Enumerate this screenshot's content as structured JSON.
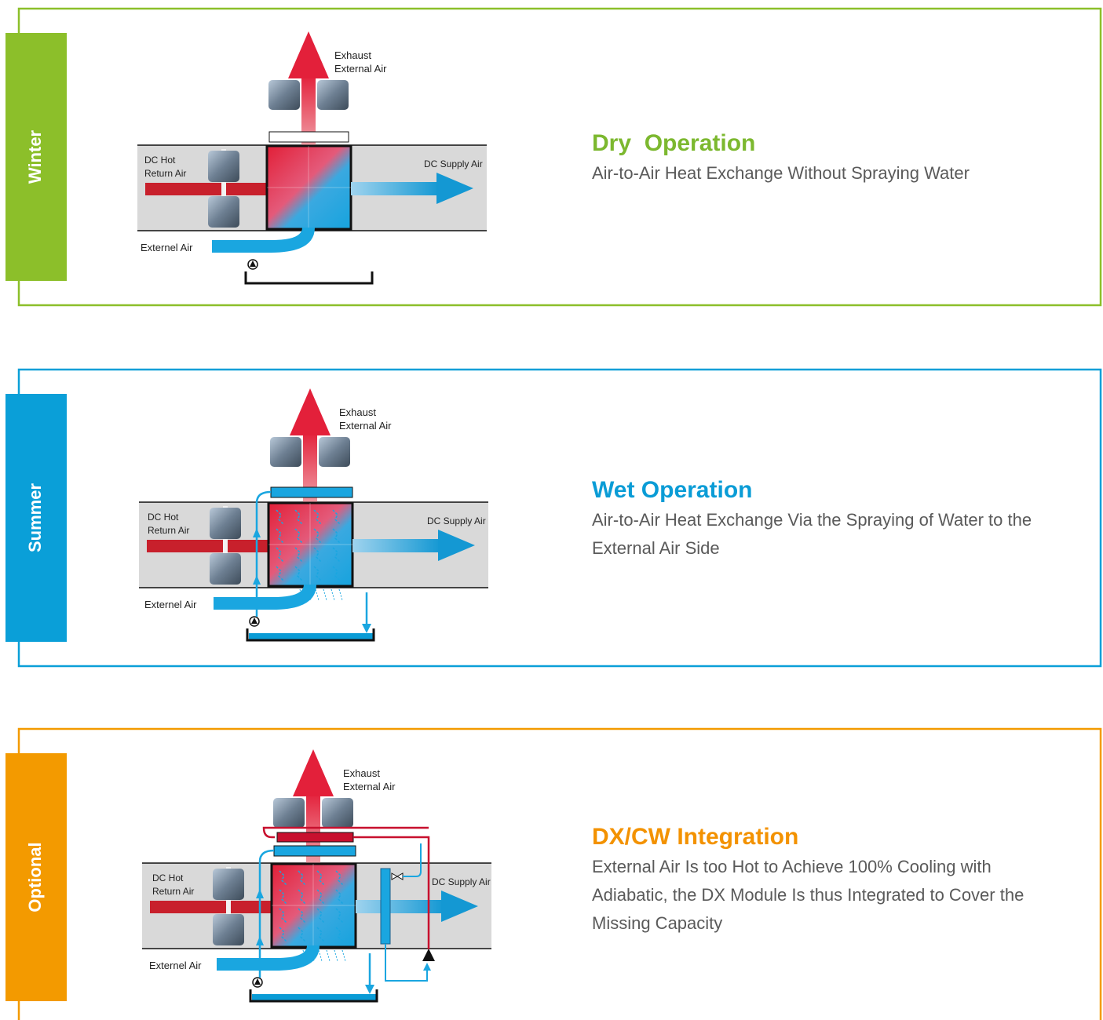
{
  "panels": [
    {
      "tab": "Winter",
      "title": "Dry  Operation",
      "description": "Air-to-Air Heat Exchange Without Spraying Water",
      "exhaust_label": [
        "Exhaust",
        "External Air"
      ],
      "return_label": [
        "DC Hot",
        "Return Air"
      ],
      "supply_label": "DC Supply Air",
      "external_label": "Externel Air"
    },
    {
      "tab": "Summer",
      "title": "Wet Operation",
      "description": "Air-to-Air Heat Exchange Via the Spraying of Water to the External Air Side",
      "exhaust_label": [
        "Exhaust",
        "External Air"
      ],
      "return_label": [
        "DC Hot",
        "Return Air"
      ],
      "supply_label": "DC Supply Air",
      "external_label": "Externel Air"
    },
    {
      "tab": "Optional",
      "title": "DX/CW Integration",
      "description": "External Air Is too Hot to Achieve 100% Cooling with Adiabatic, the DX Module Is thus  Integrated to Cover the Missing Capacity",
      "exhaust_label": [
        "Exhaust",
        "External Air"
      ],
      "return_label": [
        "DC Hot",
        "Return Air"
      ],
      "supply_label": "DC Supply Air",
      "external_label": "Externel Air"
    }
  ]
}
